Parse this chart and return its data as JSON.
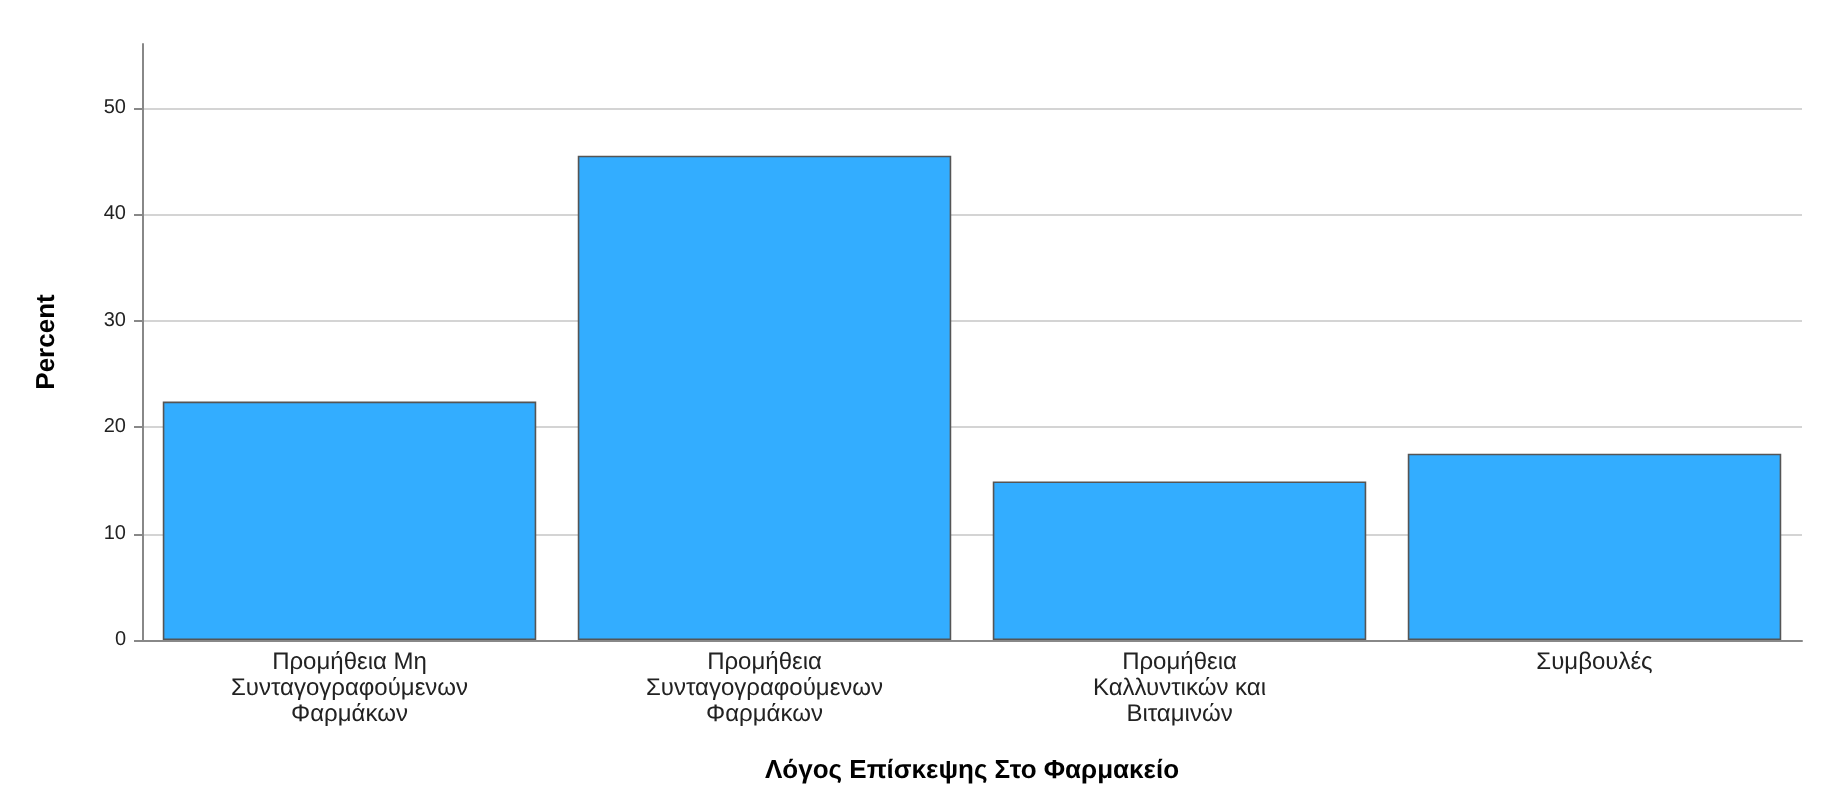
{
  "chart_data": {
    "type": "bar",
    "xlabel": "Λόγος Επίσκεψης Στο Φαρμακείο",
    "ylabel": "Percent",
    "categories": [
      "Προμήθεια Μη Συνταγογραφούμενων Φαρμάκων",
      "Προμήθεια Συνταγογραφούμενων Φαρμάκων",
      "Προμήθεια Καλλυντικών και Βιταμινών",
      "Συμβουλές"
    ],
    "values": [
      22.4,
      45.5,
      14.9,
      17.5
    ],
    "color": "#33adff",
    "ylim": [
      0,
      56
    ],
    "yticks": [
      0,
      10,
      20,
      30,
      40,
      50
    ],
    "grid": "y"
  }
}
